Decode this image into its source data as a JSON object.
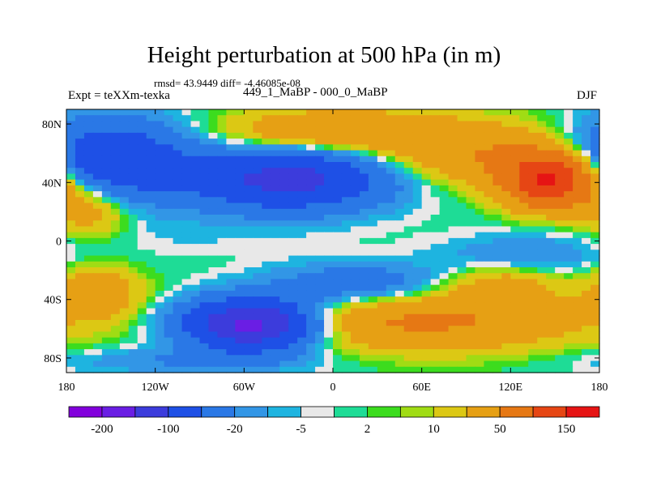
{
  "chart_data": {
    "type": "heatmap",
    "title": "Height perturbation at 500 hPa (in m)",
    "subtitle": "rmsd= 43.9449 diff= -4.46085e-08",
    "left_label": "Expt = teXXm-texka",
    "center_label": "449_1_MaBP - 000_0_MaBP",
    "right_label": "DJF",
    "xlim": [
      -180,
      180
    ],
    "ylim": [
      -90,
      90
    ],
    "x_ticks": [
      {
        "value": -180,
        "label": "180"
      },
      {
        "value": -120,
        "label": "120W"
      },
      {
        "value": -60,
        "label": "60W"
      },
      {
        "value": 0,
        "label": "0"
      },
      {
        "value": 60,
        "label": "60E"
      },
      {
        "value": 120,
        "label": "120E"
      },
      {
        "value": 180,
        "label": "180"
      }
    ],
    "y_ticks": [
      {
        "value": 80,
        "label": "80N"
      },
      {
        "value": 40,
        "label": "40N"
      },
      {
        "value": 0,
        "label": "0"
      },
      {
        "value": -40,
        "label": "40S"
      },
      {
        "value": -80,
        "label": "80S"
      }
    ],
    "colorbar": {
      "colors": [
        "#8200dc",
        "#6a1ee4",
        "#3c3cdc",
        "#1e50e6",
        "#2a78e6",
        "#3296e6",
        "#1eb4e0",
        "#e8e8e8",
        "#1edc96",
        "#3cdc1e",
        "#a0dc14",
        "#dcc814",
        "#e6a014",
        "#e67814",
        "#e64614",
        "#e61414"
      ],
      "labels": [
        "-200",
        "-100",
        "-20",
        "-5",
        "2",
        "10",
        "50",
        "150"
      ]
    },
    "field_centers": [
      {
        "lon": -150,
        "lat": 55,
        "value": -100,
        "spread_lon": 35,
        "spread_lat": 18
      },
      {
        "lon": -30,
        "lat": 42,
        "value": -120,
        "spread_lon": 45,
        "spread_lat": 14
      },
      {
        "lon": 0,
        "lat": 75,
        "value": 50,
        "spread_lon": 50,
        "spread_lat": 10
      },
      {
        "lon": 95,
        "lat": 60,
        "value": 45,
        "spread_lon": 45,
        "spread_lat": 15
      },
      {
        "lon": 148,
        "lat": 42,
        "value": 160,
        "spread_lon": 22,
        "spread_lat": 13
      },
      {
        "lon": -165,
        "lat": 25,
        "value": 40,
        "spread_lon": 20,
        "spread_lat": 15
      },
      {
        "lon": -100,
        "lat": 5,
        "value": -5,
        "spread_lon": 60,
        "spread_lat": 10
      },
      {
        "lon": 15,
        "lat": -30,
        "value": -40,
        "spread_lon": 40,
        "spread_lat": 10
      },
      {
        "lon": 130,
        "lat": -10,
        "value": -20,
        "spread_lon": 40,
        "spread_lat": 10
      },
      {
        "lon": -160,
        "lat": -35,
        "value": 40,
        "spread_lon": 20,
        "spread_lat": 12
      },
      {
        "lon": -55,
        "lat": -57,
        "value": -180,
        "spread_lon": 30,
        "spread_lat": 12
      },
      {
        "lon": 60,
        "lat": -55,
        "value": 55,
        "spread_lon": 75,
        "spread_lat": 14
      },
      {
        "lon": 115,
        "lat": -30,
        "value": 30,
        "spread_lon": 25,
        "spread_lat": 10
      },
      {
        "lon": -100,
        "lat": -82,
        "value": -20,
        "spread_lon": 60,
        "spread_lat": 6
      }
    ]
  }
}
